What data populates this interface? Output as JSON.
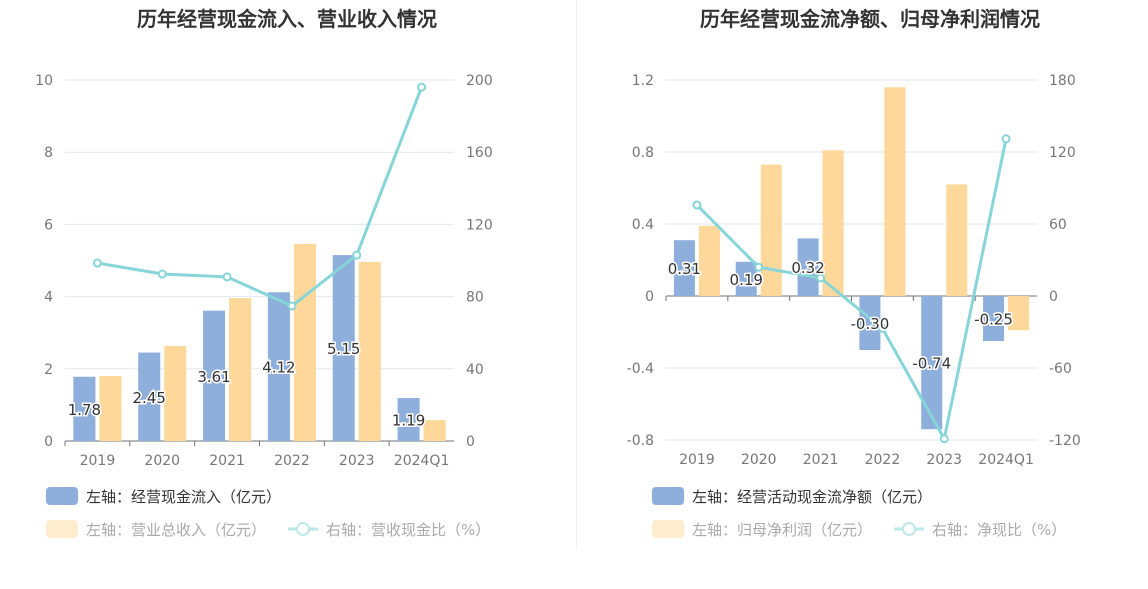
{
  "chart_data": [
    {
      "type": "bar+line",
      "title": "历年经营现金流入、营业收入情况",
      "categories": [
        "2019",
        "2020",
        "2021",
        "2022",
        "2023",
        "2024Q1"
      ],
      "left_ylim": [
        0,
        10
      ],
      "left_ticks": [
        "0",
        "2",
        "4",
        "6",
        "8",
        "10"
      ],
      "right_ylim": [
        0,
        200
      ],
      "right_ticks": [
        "0",
        "40",
        "80",
        "120",
        "160",
        "200"
      ],
      "series": [
        {
          "name": "左轴：经营现金流入（亿元）",
          "type": "bar",
          "axis": "left",
          "color": "#8eaedb",
          "values": [
            1.78,
            2.45,
            3.61,
            4.12,
            5.15,
            1.19
          ],
          "labels": [
            "1.78",
            "2.45",
            "3.61",
            "4.12",
            "5.15",
            "1.19"
          ]
        },
        {
          "name": "左轴：营业总收入（亿元）",
          "type": "bar",
          "axis": "left",
          "color": "#fdd89a",
          "values": [
            1.8,
            2.63,
            3.96,
            5.46,
            4.96,
            0.58
          ]
        },
        {
          "name": "右轴：营收现金比（%）",
          "type": "line",
          "axis": "right",
          "color": "#86d5d8",
          "values": [
            98.6,
            92.5,
            90.9,
            74.8,
            103,
            196
          ]
        }
      ]
    },
    {
      "type": "bar+line",
      "title": "历年经营现金流净额、归母净利润情况",
      "categories": [
        "2019",
        "2020",
        "2021",
        "2022",
        "2023",
        "2024Q1"
      ],
      "left_ylim": [
        -0.8,
        1.2
      ],
      "left_ticks": [
        "-0.8",
        "-0.4",
        "0",
        "0.4",
        "0.8",
        "1.2"
      ],
      "right_ylim": [
        -120,
        180
      ],
      "right_ticks": [
        "-120",
        "-60",
        "0",
        "60",
        "120",
        "180"
      ],
      "series": [
        {
          "name": "左轴：经营活动现金流净额（亿元）",
          "type": "bar",
          "axis": "left",
          "color": "#8eaedb",
          "values": [
            0.31,
            0.19,
            0.32,
            -0.3,
            -0.74,
            -0.25
          ],
          "labels": [
            "0.31",
            "0.19",
            "0.32",
            "-0.30",
            "-0.74",
            "-0.25"
          ]
        },
        {
          "name": "左轴：归母净利润（亿元）",
          "type": "bar",
          "axis": "left",
          "color": "#fdd89a",
          "values": [
            0.39,
            0.73,
            0.81,
            1.16,
            0.62,
            -0.19
          ]
        },
        {
          "name": "右轴：净现比（%）",
          "type": "line",
          "axis": "right",
          "color": "#86d5d8",
          "values": [
            75.8,
            24,
            15,
            -27,
            -119,
            131
          ]
        }
      ]
    }
  ]
}
